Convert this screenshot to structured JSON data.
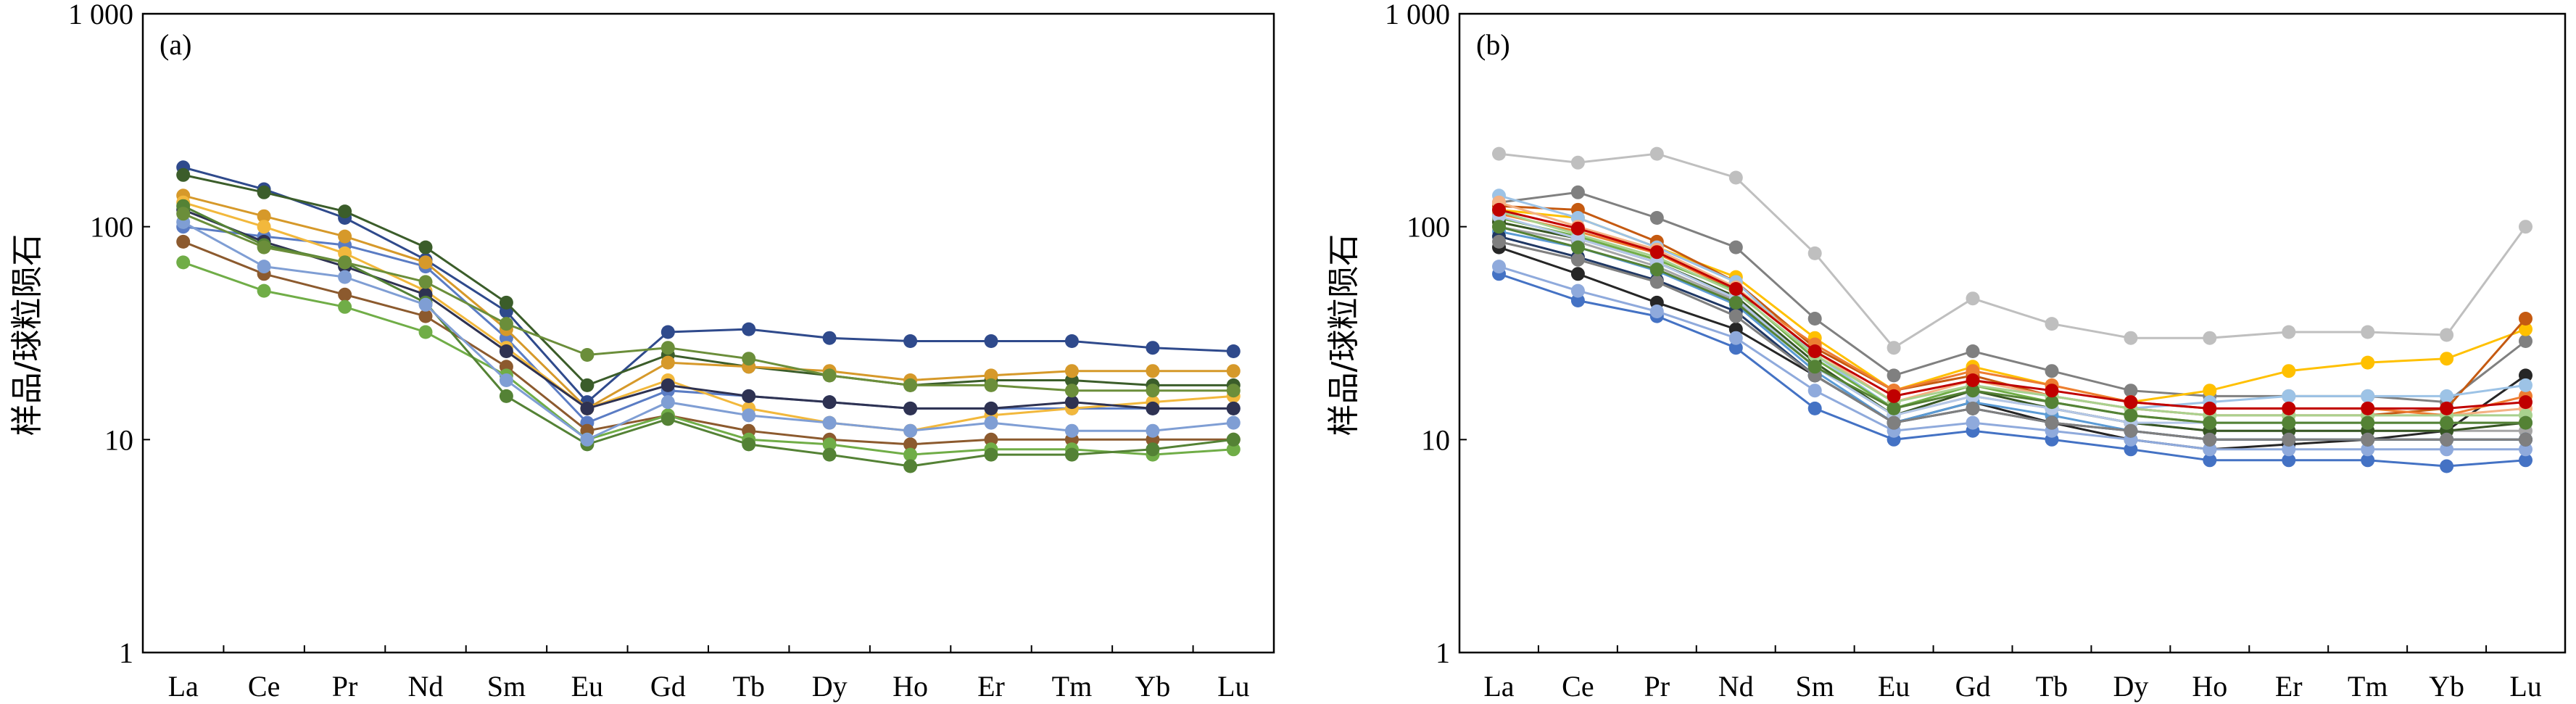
{
  "chart_data": [
    {
      "type": "line",
      "panel_label": "(a)",
      "ylabel": "样品/球粒陨石",
      "yscale": "log",
      "ylim": [
        1,
        1000
      ],
      "yticks": [
        "1",
        "10",
        "100",
        "1 000"
      ],
      "categories": [
        "La",
        "Ce",
        "Pr",
        "Nd",
        "Sm",
        "Eu",
        "Gd",
        "Tb",
        "Dy",
        "Ho",
        "Er",
        "Tm",
        "Yb",
        "Lu"
      ],
      "legend": "none",
      "grid": false,
      "series": [
        {
          "color": "#2f4a8c",
          "values": [
            190,
            150,
            110,
            70,
            40,
            15,
            32,
            33,
            30,
            29,
            29,
            29,
            27,
            26
          ]
        },
        {
          "color": "#3b5d2a",
          "values": [
            175,
            145,
            118,
            80,
            44,
            18,
            25,
            22,
            20,
            18,
            19,
            19,
            18,
            18
          ]
        },
        {
          "color": "#5a7cc4",
          "values": [
            100,
            90,
            82,
            65,
            30,
            12,
            17,
            16,
            15,
            14,
            14,
            14,
            14,
            14
          ]
        },
        {
          "color": "#d6992a",
          "values": [
            140,
            112,
            90,
            68,
            33,
            14,
            23,
            22,
            21,
            19,
            20,
            21,
            21,
            21
          ]
        },
        {
          "color": "#f2b83c",
          "values": [
            130,
            100,
            75,
            50,
            27,
            14,
            19,
            14,
            12,
            11,
            13,
            14,
            15,
            16
          ]
        },
        {
          "color": "#2e3252",
          "values": [
            120,
            85,
            65,
            48,
            26,
            14,
            18,
            16,
            15,
            14,
            14,
            15,
            14,
            14
          ]
        },
        {
          "color": "#8c5a2e",
          "values": [
            85,
            60,
            48,
            38,
            22,
            11,
            13,
            11,
            10,
            9.5,
            10,
            10,
            10,
            10
          ]
        },
        {
          "color": "#70ad47",
          "values": [
            68,
            50,
            42,
            32,
            20,
            10,
            13,
            10,
            9.5,
            8.5,
            9,
            9,
            8.5,
            9
          ]
        },
        {
          "color": "#548235",
          "values": [
            125,
            82,
            68,
            44,
            16,
            9.5,
            12.5,
            9.5,
            8.5,
            7.5,
            8.5,
            8.5,
            9,
            10
          ]
        },
        {
          "color": "#7f9ed4",
          "values": [
            105,
            65,
            58,
            43,
            19,
            10,
            15,
            13,
            12,
            11,
            12,
            11,
            11,
            12
          ]
        },
        {
          "color": "#6b8e3a",
          "values": [
            115,
            80,
            68,
            55,
            35,
            25,
            27,
            24,
            20,
            18,
            18,
            17,
            17,
            17
          ]
        }
      ]
    },
    {
      "type": "line",
      "panel_label": "(b)",
      "ylabel": "样品/球粒陨石",
      "yscale": "log",
      "ylim": [
        1,
        1000
      ],
      "yticks": [
        "1",
        "10",
        "100",
        "1 000"
      ],
      "categories": [
        "La",
        "Ce",
        "Pr",
        "Nd",
        "Sm",
        "Eu",
        "Gd",
        "Tb",
        "Dy",
        "Ho",
        "Er",
        "Tm",
        "Yb",
        "Lu"
      ],
      "legend": "none",
      "grid": false,
      "series": [
        {
          "color": "#bfbfbf",
          "values": [
            220,
            200,
            220,
            170,
            75,
            27,
            46,
            35,
            30,
            30,
            32,
            32,
            31,
            100
          ]
        },
        {
          "color": "#808080",
          "values": [
            130,
            145,
            110,
            80,
            37,
            20,
            26,
            21,
            17,
            16,
            16,
            16,
            15,
            29
          ]
        },
        {
          "color": "#ffc000",
          "values": [
            120,
            110,
            80,
            58,
            30,
            17,
            22,
            18,
            15,
            17,
            21,
            23,
            24,
            33
          ]
        },
        {
          "color": "#c55a11",
          "values": [
            125,
            120,
            85,
            55,
            27,
            17,
            20,
            16,
            14,
            13,
            13,
            13,
            14,
            37
          ]
        },
        {
          "color": "#262626",
          "values": [
            80,
            60,
            44,
            33,
            20,
            12,
            15,
            12,
            10,
            9,
            9.5,
            10,
            11,
            20
          ]
        },
        {
          "color": "#4472c4",
          "values": [
            60,
            45,
            38,
            27,
            14,
            10,
            11,
            10,
            9,
            8,
            8,
            8,
            7.5,
            8
          ]
        },
        {
          "color": "#ed7d31",
          "values": [
            115,
            95,
            75,
            50,
            28,
            17,
            21,
            18,
            15,
            14,
            14,
            14,
            13,
            16
          ]
        },
        {
          "color": "#9dc3e6",
          "values": [
            140,
            110,
            80,
            55,
            25,
            14,
            18,
            16,
            14,
            15,
            16,
            16,
            16,
            18
          ]
        },
        {
          "color": "#70ad47",
          "values": [
            110,
            90,
            70,
            50,
            24,
            14,
            18,
            15,
            13,
            12,
            12,
            12,
            12,
            12
          ]
        },
        {
          "color": "#a5a5a5",
          "values": [
            100,
            85,
            65,
            45,
            22,
            13,
            16,
            14,
            12,
            11,
            11,
            11,
            11,
            11
          ]
        },
        {
          "color": "#5b9bd5",
          "values": [
            95,
            80,
            62,
            43,
            21,
            12,
            15,
            13,
            11,
            10,
            10,
            10,
            10,
            10
          ]
        },
        {
          "color": "#375623",
          "values": [
            105,
            88,
            68,
            47,
            23,
            13,
            17,
            14,
            12,
            11,
            11,
            11,
            11,
            12
          ]
        },
        {
          "color": "#8faadc",
          "values": [
            65,
            50,
            40,
            30,
            17,
            11,
            12,
            11,
            10,
            9,
            9,
            9,
            9,
            9
          ]
        },
        {
          "color": "#203864",
          "values": [
            90,
            72,
            56,
            40,
            20,
            12,
            14,
            12,
            11,
            10,
            10,
            10,
            10,
            10
          ]
        },
        {
          "color": "#f4b183",
          "values": [
            130,
            100,
            78,
            52,
            26,
            15,
            19,
            16,
            14,
            13,
            13,
            13,
            13,
            14
          ]
        },
        {
          "color": "#a9d18e",
          "values": [
            118,
            92,
            72,
            49,
            25,
            15,
            18,
            16,
            14,
            13,
            13,
            13,
            13,
            13
          ]
        },
        {
          "color": "#b4c7e7",
          "values": [
            112,
            88,
            68,
            46,
            22,
            13,
            16,
            14,
            12,
            12,
            12,
            12,
            12,
            12
          ]
        },
        {
          "color": "#7f7f7f",
          "values": [
            85,
            70,
            55,
            38,
            20,
            12,
            14,
            12,
            11,
            10,
            10,
            10,
            10,
            10
          ]
        },
        {
          "color": "#548235",
          "values": [
            100,
            80,
            63,
            44,
            22,
            14,
            17,
            15,
            13,
            12,
            12,
            12,
            12,
            12
          ]
        },
        {
          "color": "#c00000",
          "values": [
            120,
            98,
            76,
            51,
            26,
            16,
            19,
            17,
            15,
            14,
            14,
            14,
            14,
            15
          ]
        }
      ]
    }
  ]
}
